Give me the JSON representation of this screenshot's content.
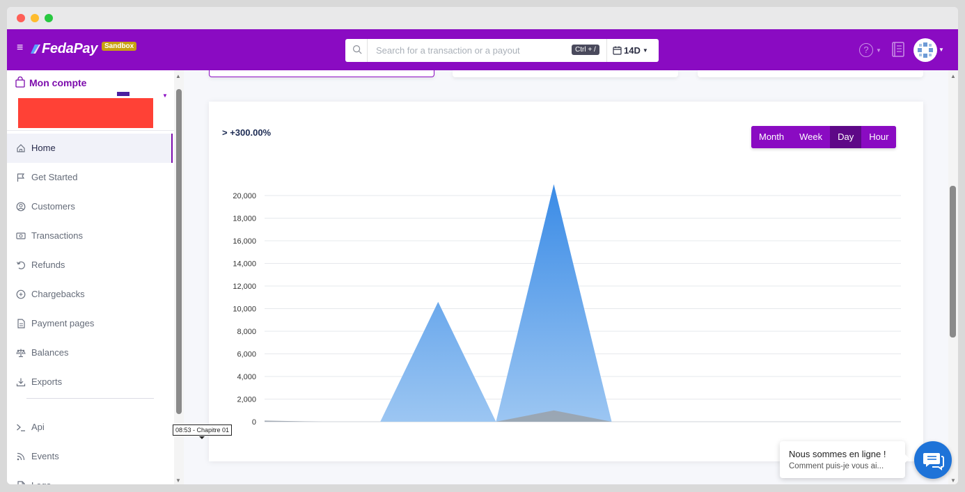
{
  "header": {
    "menu_glyph": "≡",
    "brand": "FedaPay",
    "env_badge": "Sandbox",
    "search": {
      "placeholder": "Search for a transaction or a payout",
      "shortcut": "Ctrl + /"
    },
    "date_range": "14D",
    "help_glyph": "?"
  },
  "sidebar": {
    "account_title": "Mon compte",
    "items": [
      {
        "label": "Home",
        "icon": "home-icon",
        "active": true
      },
      {
        "label": "Get Started",
        "icon": "flag-icon"
      },
      {
        "label": "Customers",
        "icon": "user-circle-icon"
      },
      {
        "label": "Transactions",
        "icon": "money-icon"
      },
      {
        "label": "Refunds",
        "icon": "refund-icon"
      },
      {
        "label": "Chargebacks",
        "icon": "chargeback-icon"
      },
      {
        "label": "Payment pages",
        "icon": "document-icon"
      },
      {
        "label": "Balances",
        "icon": "scale-icon"
      },
      {
        "label": "Exports",
        "icon": "download-icon"
      }
    ],
    "dev_items": [
      {
        "label": "Api",
        "icon": "terminal-icon"
      },
      {
        "label": "Events",
        "icon": "rss-icon"
      },
      {
        "label": "Logs",
        "icon": "file-icon"
      }
    ]
  },
  "chart_card": {
    "growth": "> +300.00%",
    "periods": [
      "Month",
      "Week",
      "Day",
      "Hour"
    ],
    "active_period": "Day"
  },
  "chart_data": {
    "type": "area",
    "y_ticks": [
      "0",
      "2,000",
      "4,000",
      "6,000",
      "8,000",
      "10,000",
      "12,000",
      "14,000",
      "16,000",
      "18,000",
      "20,000"
    ],
    "ylim": [
      0,
      20000
    ],
    "grid": true,
    "series": [
      {
        "color": "#3f8ee4",
        "values": [
          0,
          0,
          0,
          10600,
          0,
          21000,
          0,
          0,
          0,
          0,
          0,
          0
        ]
      },
      {
        "color": "#9aa3ad",
        "values": [
          100,
          0,
          0,
          0,
          0,
          1000,
          0,
          0,
          0,
          0,
          0,
          0
        ]
      }
    ]
  },
  "tooltip": "08:53 -  Chapitre 01",
  "chat": {
    "title": "Nous sommes en ligne !",
    "subtitle": "Comment puis-je vous ai..."
  }
}
